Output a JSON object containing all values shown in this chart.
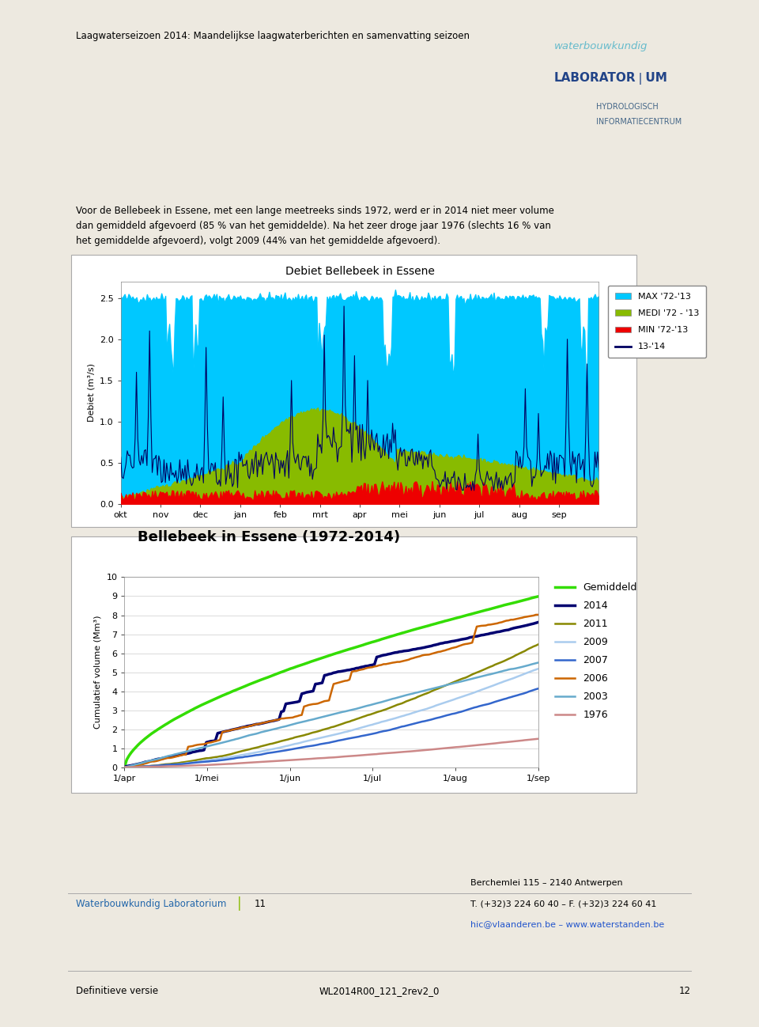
{
  "page_title": "Laagwaterseizoen 2014: Maandelijkse laagwaterberichten en samenvatting seizoen",
  "page_bg": "#ede9e0",
  "chart1": {
    "title": "Debiet Bellebeek in Essene",
    "ylabel": "Debiet (m³/s)",
    "ylim": [
      0.0,
      2.7
    ],
    "yticks": [
      0.0,
      0.5,
      1.0,
      1.5,
      2.0,
      2.5
    ],
    "ytick_labels": [
      "0.0",
      "0.5",
      "1.0",
      "1.5",
      "2.0",
      "2.5"
    ],
    "xtick_labels": [
      "okt",
      "nov",
      "dec",
      "jan",
      "feb",
      "mrt",
      "apr",
      "mei",
      "jun",
      "jul",
      "aug",
      "sep"
    ],
    "legend_labels": [
      "MAX '72-'13",
      "MEDI '72 - '13",
      "MIN '72-'13",
      "13-'14"
    ],
    "max_color": "#00c8ff",
    "medi_color": "#88bb00",
    "min_color": "#ee0000",
    "line_color": "#000060",
    "bg_color": "#ffffff"
  },
  "chart2": {
    "title": "Bellebeek in Essene (1972-2014)",
    "ylabel": "Cumulatief volume (Mm³)",
    "ylim": [
      0,
      10
    ],
    "yticks": [
      0,
      1,
      2,
      3,
      4,
      5,
      6,
      7,
      8,
      9,
      10
    ],
    "xtick_labels": [
      "1/apr",
      "1/mei",
      "1/jun",
      "1/jul",
      "1/aug",
      "1/sep"
    ],
    "legend_labels": [
      "Gemiddeld",
      "2014",
      "2011",
      "2009",
      "2007",
      "2006",
      "2003",
      "1976"
    ],
    "legend_colors": [
      "#33dd00",
      "#000070",
      "#888800",
      "#aaccee",
      "#3366cc",
      "#cc6600",
      "#66aacc",
      "#cc8888"
    ],
    "line_widths": [
      2.5,
      2.5,
      1.8,
      1.8,
      1.8,
      1.8,
      1.8,
      1.8
    ],
    "bg_color": "#ffffff"
  },
  "text_block": "Voor de Bellebeek in Essene, met een lange meetreeks sinds 1972, werd er in 2014 niet meer volume\ndan gemiddeld afgevoerd (85 % van het gemiddelde). Na het zeer droge jaar 1976 (slechts 16 % van\nhet gemiddelde afgevoerd), volgt 2009 (44% van het gemiddelde afgevoerd).",
  "footer_left": "Waterbouwkundig Laboratorium",
  "footer_page": "11",
  "footer_right_line1": "Berchemlei 115 – 2140 Antwerpen",
  "footer_right_line2": "T. (+32)3 224 60 40 – F. (+32)3 224 60 41",
  "footer_right_line3": "hic@vlaanderen.be – www.waterstanden.be",
  "footer_left2": "Definitieve versie",
  "footer_center2": "WL2014R00_121_2rev2_0",
  "footer_right2": "12"
}
